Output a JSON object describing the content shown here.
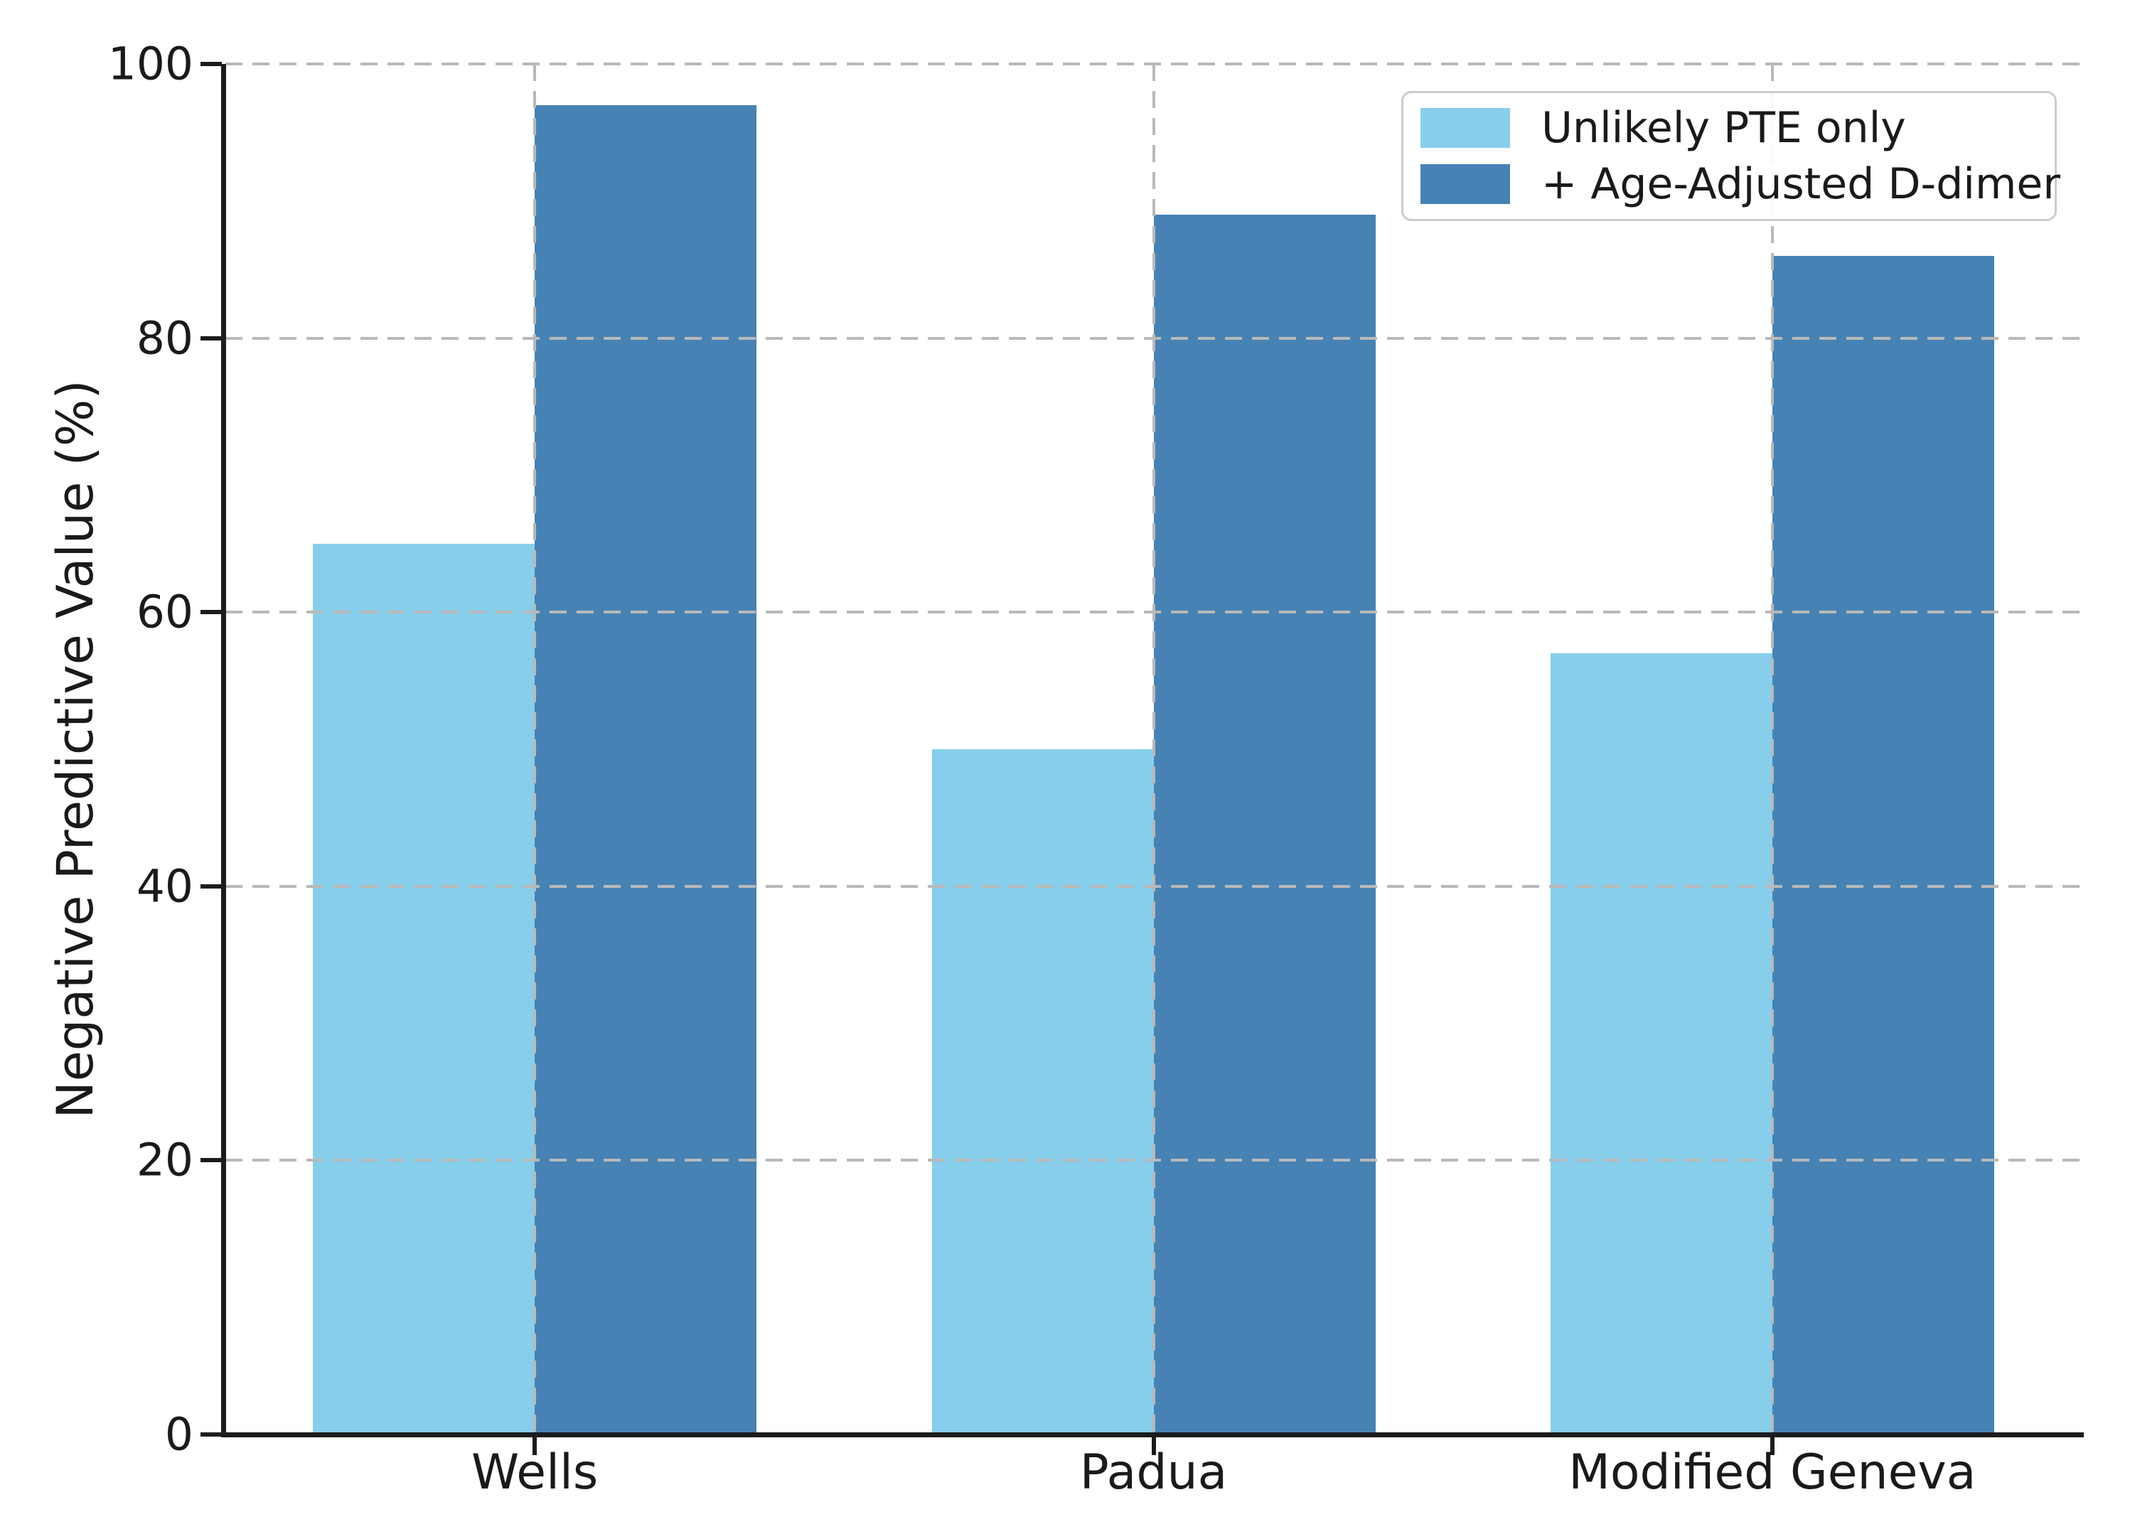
{
  "chart_data": {
    "type": "bar",
    "title": "",
    "categories": [
      "Wells",
      "Padua",
      "Modified Geneva"
    ],
    "series": [
      {
        "name": "Unlikely PTE only",
        "color": "#87CEEB",
        "values": [
          65,
          50,
          57
        ]
      },
      {
        "name": "+ Age-Adjusted D-dimer",
        "color": "#4682B4",
        "values": [
          97,
          89,
          86
        ]
      }
    ],
    "xlabel": "",
    "ylabel": "Negative Predictive Value (%)",
    "ylim": [
      0,
      100
    ],
    "yticks": [
      "0",
      "20",
      "40",
      "60",
      "80",
      "100"
    ],
    "ytick_values": [
      0,
      20,
      40,
      60,
      80,
      100
    ],
    "grid": "dashed-both-axes-above-bars",
    "grid_color": "#b9b9b9",
    "axis_color": "#1c1c1c",
    "legend_position": "upper-right",
    "legend_border_color": "#cccccc",
    "background_color": "#ffffff"
  }
}
